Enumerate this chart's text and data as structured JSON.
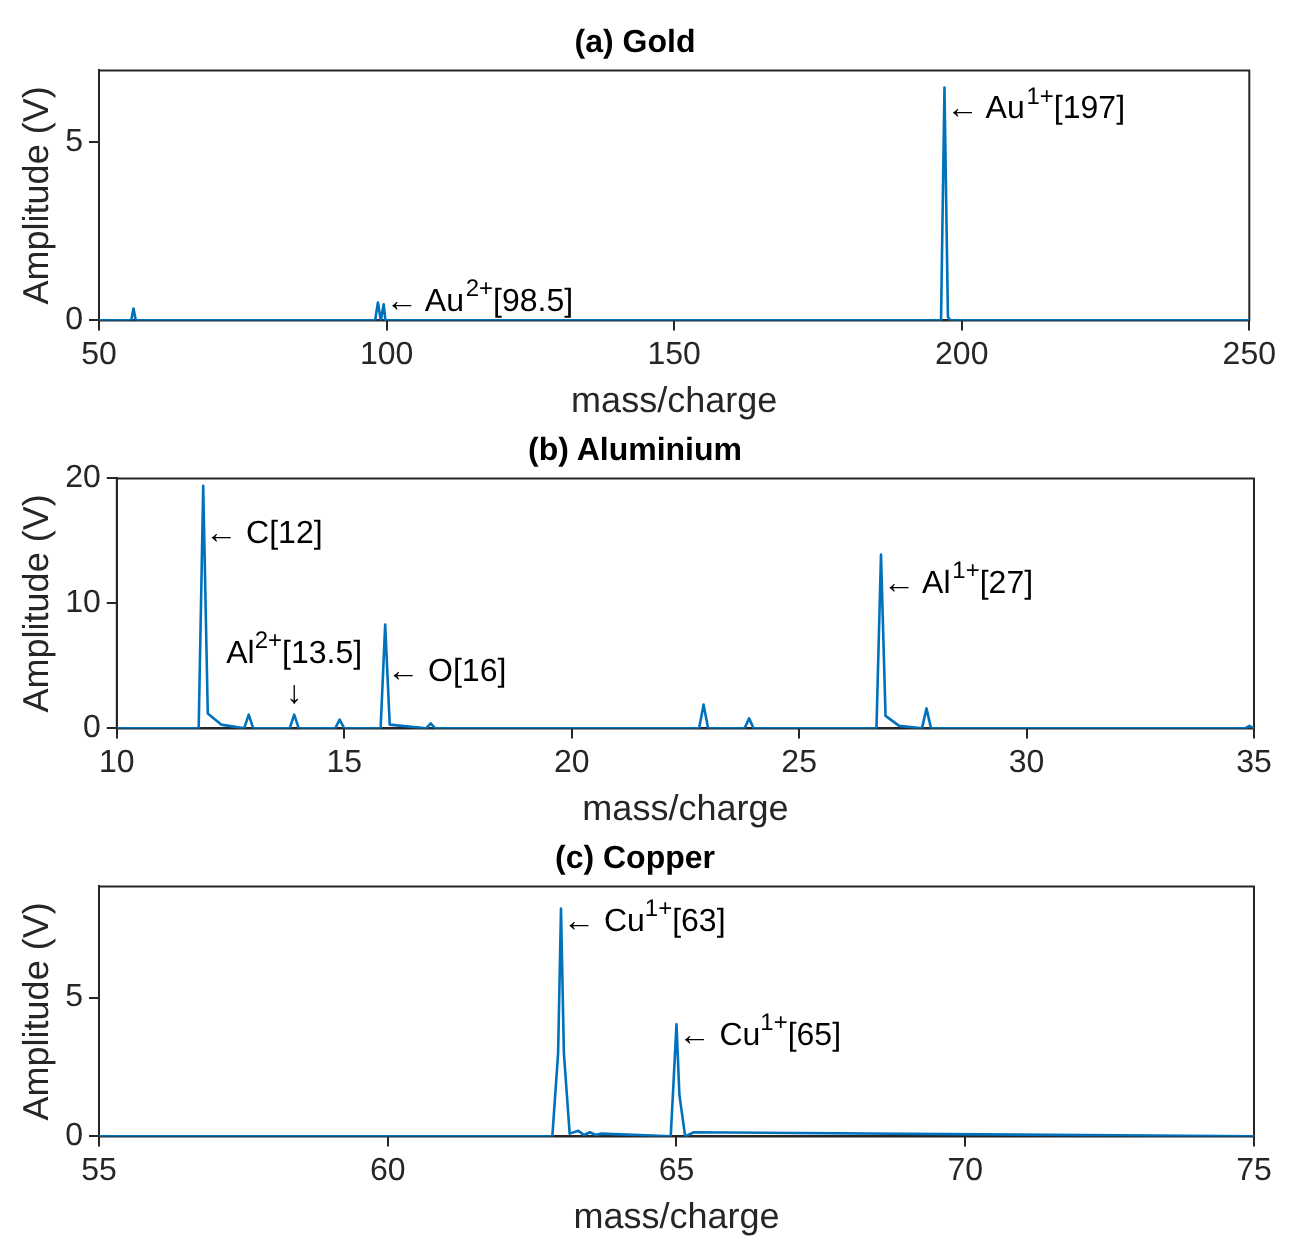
{
  "chart_data": [
    {
      "type": "line",
      "title": "(a) Gold",
      "xlabel": "mass/charge",
      "ylabel": "Amplitude (V)",
      "xlim": [
        50,
        250
      ],
      "xticks": [
        50,
        100,
        150,
        200,
        250
      ],
      "ylim": [
        0,
        7
      ],
      "yticks": [
        0,
        5
      ],
      "grid": false,
      "legend": false,
      "marker": "none",
      "line_style": "solid",
      "series": [
        {
          "color": "#0072bd",
          "x": [
            50,
            55.6,
            56,
            56.4,
            98,
            98.5,
            99,
            99.2,
            99.5,
            99.8,
            196.4,
            197,
            197.6,
            198,
            250
          ],
          "values": [
            0,
            0,
            0.33,
            0,
            0,
            0.5,
            0,
            0,
            0.45,
            0,
            0,
            6.52,
            0.1,
            0,
            0
          ]
        }
      ],
      "annotations": [
        {
          "text": "← Au$^{2+}$[98.5]",
          "x": 99.5,
          "y": 0.5
        },
        {
          "text": "← Au$^{1+}$[197]",
          "x": 197,
          "y": 5.9
        }
      ]
    },
    {
      "type": "line",
      "title": "(b) Aluminium",
      "xlabel": "mass/charge",
      "ylabel": "Amplitude (V)",
      "xlim": [
        10,
        35
      ],
      "xticks": [
        10,
        15,
        20,
        25,
        30,
        35
      ],
      "ylim": [
        0,
        20
      ],
      "yticks": [
        0,
        10,
        20
      ],
      "grid": false,
      "legend": false,
      "marker": "none",
      "line_style": "solid",
      "series": [
        {
          "color": "#0072bd",
          "x": [
            10,
            11.8,
            11.9,
            12.0,
            12.3,
            12.8,
            12.9,
            13.0,
            13.8,
            13.9,
            14.0,
            14.8,
            14.9,
            15.0,
            15.8,
            15.9,
            16.0,
            16.8,
            16.9,
            17.0,
            22.8,
            22.9,
            23.0,
            23.8,
            23.9,
            24.0,
            26.7,
            26.8,
            26.9,
            27.2,
            27.7,
            27.8,
            27.9,
            34.8,
            34.9,
            35
          ],
          "values": [
            0,
            0,
            19.4,
            1.2,
            0.3,
            0,
            1.1,
            0,
            0,
            1.1,
            0,
            0,
            0.7,
            0,
            0,
            8.3,
            0.3,
            0,
            0.4,
            0,
            0,
            1.9,
            0,
            0,
            0.8,
            0,
            0,
            13.9,
            1,
            0.2,
            0,
            1.6,
            0,
            0,
            0.2,
            0
          ]
        }
      ],
      "annotations": [
        {
          "text": "← C[12]",
          "x": 11.9,
          "y": 15.5
        },
        {
          "text": "Al$^{2+}$[13.5]\n↓",
          "x": 13.9,
          "y": 1.1
        },
        {
          "text": "← O[16]",
          "x": 15.9,
          "y": 4.5
        },
        {
          "text": "← Al$^{1+}$[27]",
          "x": 26.8,
          "y": 11.5
        }
      ]
    },
    {
      "type": "line",
      "title": "(c) Copper",
      "xlabel": "mass/charge",
      "ylabel": "Amplitude (V)",
      "xlim": [
        55,
        75
      ],
      "xticks": [
        55,
        60,
        65,
        70,
        75
      ],
      "ylim": [
        0,
        9
      ],
      "yticks": [
        0,
        5
      ],
      "grid": false,
      "legend": false,
      "marker": "none",
      "line_style": "solid",
      "series": [
        {
          "color": "#0072bd",
          "x": [
            55,
            62.85,
            62.95,
            63.0,
            63.05,
            63.15,
            63.3,
            63.4,
            63.5,
            63.6,
            63.7,
            64.9,
            64.95,
            65.0,
            65.05,
            65.15,
            65.3,
            75
          ],
          "values": [
            0,
            0,
            3,
            8.2,
            3,
            0.1,
            0.2,
            0.05,
            0.15,
            0.05,
            0.1,
            0,
            2,
            4.04,
            1.5,
            0,
            0.15,
            0
          ]
        }
      ],
      "annotations": [
        {
          "text": "← Cu$^{1+}$[63]",
          "x": 63.0,
          "y": 7.7
        },
        {
          "text": "← Cu$^{1+}$[65]",
          "x": 65.0,
          "y": 3.6
        }
      ]
    }
  ]
}
